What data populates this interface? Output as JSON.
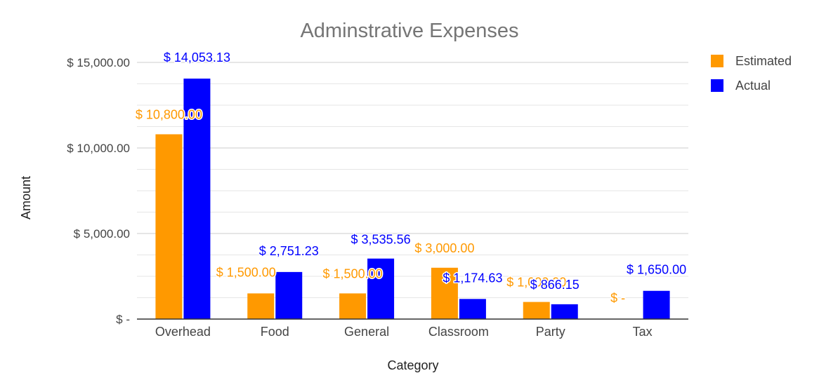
{
  "chart_data": {
    "type": "bar",
    "title": "Adminstrative Expenses",
    "xlabel": "Category",
    "ylabel": "Amount",
    "categories": [
      "Overhead",
      "Food",
      "General",
      "Classroom",
      "Party",
      "Tax"
    ],
    "series": [
      {
        "name": "Estimated",
        "color": "#FF9900",
        "values": [
          10800,
          1500,
          1500,
          3000,
          1000,
          0
        ],
        "labels": [
          "$ 10,800.00",
          "$ 1,500.00",
          "$ 1,500.00",
          "$ 3,000.00",
          "$ 1,000.00",
          "$ -"
        ]
      },
      {
        "name": "Actual",
        "color": "#0000FF",
        "values": [
          14053.13,
          2751.23,
          3535.56,
          1174.63,
          866.15,
          1650.0
        ],
        "labels": [
          "$ 14,053.13",
          "$ 2,751.23",
          "$ 3,535.56",
          "$ 1,174.63",
          "$ 866.15",
          "$ 1,650.00"
        ]
      }
    ],
    "ylim": [
      0,
      15000
    ],
    "yticks": [
      {
        "value": 0,
        "label": "$ -"
      },
      {
        "value": 5000,
        "label": "$ 5,000.00"
      },
      {
        "value": 10000,
        "label": "$ 10,000.00"
      },
      {
        "value": 15000,
        "label": "$ 15,000.00"
      }
    ],
    "grid": true,
    "legend_position": "top-right"
  }
}
